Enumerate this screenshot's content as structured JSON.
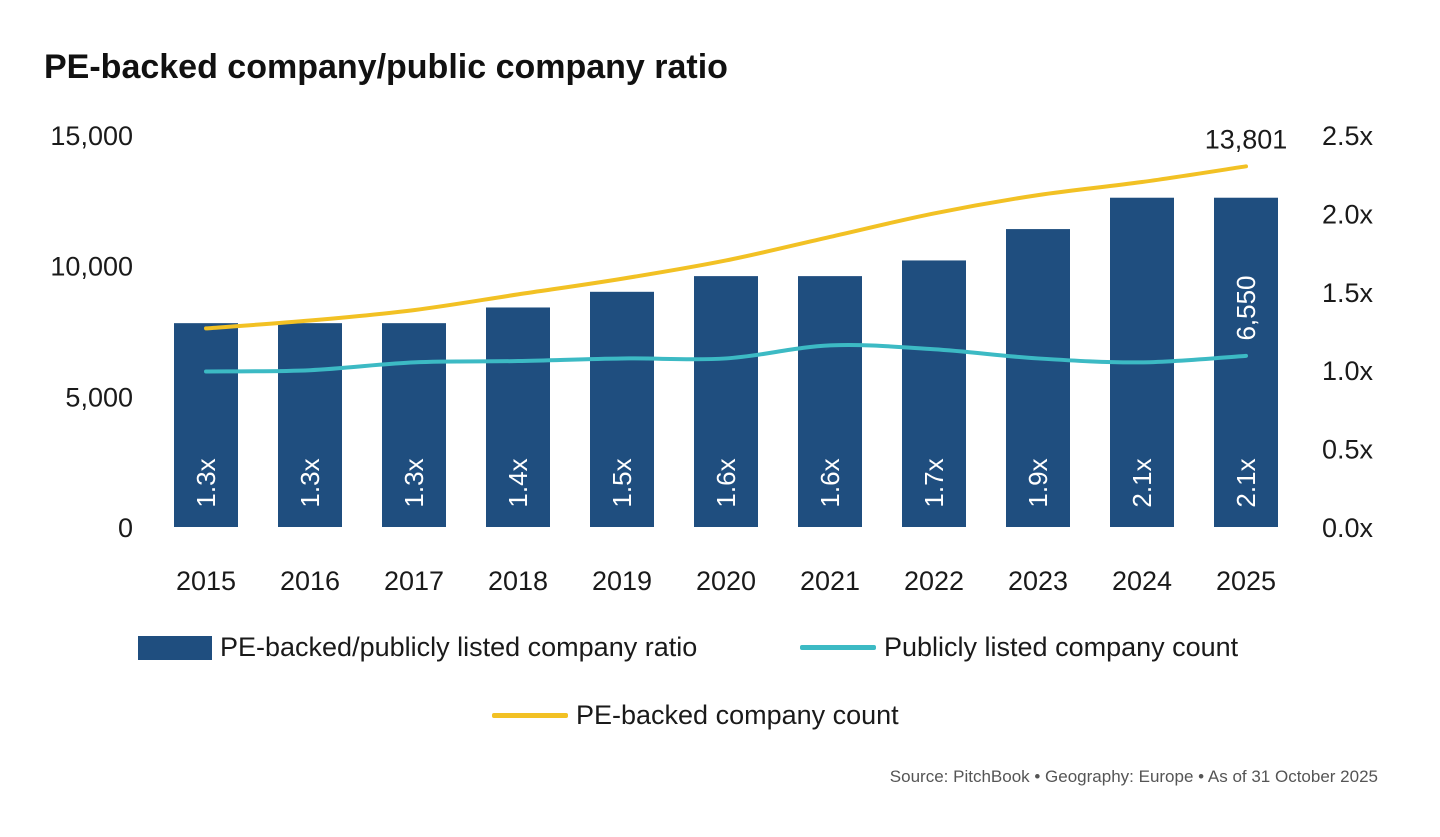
{
  "title": "PE-backed company/public company ratio",
  "source": "Source: PitchBook  •  Geography: Europe  •  As of 31 October 2025",
  "colors": {
    "bar": "#1f4e7f",
    "public_line": "#3cbac4",
    "pe_line": "#f2c124"
  },
  "chart_data": {
    "type": "bar",
    "categories": [
      "2015",
      "2016",
      "2017",
      "2018",
      "2019",
      "2020",
      "2021",
      "2022",
      "2023",
      "2024",
      "2025"
    ],
    "y_left": {
      "ylim": [
        0,
        15000
      ],
      "ticks": [
        "0",
        "5,000",
        "10,000",
        "15,000"
      ],
      "tick_values": [
        0,
        5000,
        10000,
        15000
      ]
    },
    "y_right": {
      "ylim": [
        0,
        2.5
      ],
      "ticks": [
        "0.0x",
        "0.5x",
        "1.0x",
        "1.5x",
        "2.0x",
        "2.5x"
      ],
      "tick_values": [
        0,
        0.5,
        1.0,
        1.5,
        2.0,
        2.5
      ]
    },
    "series": [
      {
        "name": "PE-backed/publicly listed company ratio",
        "type": "bar",
        "axis": "right",
        "values": [
          1.3,
          1.3,
          1.3,
          1.4,
          1.5,
          1.6,
          1.6,
          1.7,
          1.9,
          2.1,
          2.1
        ],
        "labels": [
          "1.3x",
          "1.3x",
          "1.3x",
          "1.4x",
          "1.5x",
          "1.6x",
          "1.6x",
          "1.7x",
          "1.9x",
          "2.1x",
          "2.1x"
        ]
      },
      {
        "name": "Publicly listed company count",
        "type": "line",
        "axis": "left",
        "values": [
          5950,
          6000,
          6300,
          6350,
          6450,
          6450,
          6950,
          6800,
          6450,
          6300,
          6550
        ]
      },
      {
        "name": "PE-backed company count",
        "type": "line",
        "axis": "left",
        "values": [
          7600,
          7900,
          8300,
          8900,
          9500,
          10200,
          11100,
          12000,
          12700,
          13200,
          13801
        ]
      }
    ],
    "annotations": {
      "pe_last": "13,801",
      "public_last": "6,550"
    },
    "legend": "bottom",
    "grid": false
  }
}
